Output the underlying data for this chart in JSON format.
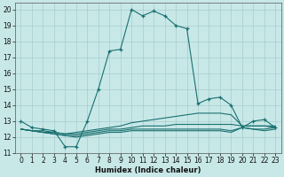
{
  "xlabel": "Humidex (Indice chaleur)",
  "xlim": [
    -0.5,
    23.5
  ],
  "ylim": [
    11,
    20.4
  ],
  "yticks": [
    11,
    12,
    13,
    14,
    15,
    16,
    17,
    18,
    19,
    20
  ],
  "xticks": [
    0,
    1,
    2,
    3,
    4,
    5,
    6,
    7,
    8,
    9,
    10,
    11,
    12,
    13,
    14,
    15,
    16,
    17,
    18,
    19,
    20,
    21,
    22,
    23
  ],
  "bg_color": "#c8e8e8",
  "grid_color": "#a8cccc",
  "line_color": "#1a7070",
  "lines": [
    {
      "x": [
        0,
        1,
        2,
        3,
        4,
        5,
        6,
        7,
        8,
        9,
        10,
        11,
        12,
        13,
        14,
        15,
        16,
        17,
        18,
        19,
        20,
        21,
        22,
        23
      ],
      "y": [
        13.0,
        12.6,
        12.5,
        12.4,
        11.4,
        11.4,
        13.0,
        15.0,
        17.4,
        17.5,
        20.0,
        19.6,
        19.9,
        19.6,
        19.0,
        18.8,
        14.1,
        14.4,
        14.5,
        14.0,
        12.6,
        13.0,
        13.1,
        12.6
      ],
      "marker": true
    },
    {
      "x": [
        0,
        1,
        2,
        3,
        4,
        5,
        6,
        7,
        8,
        9,
        10,
        11,
        12,
        13,
        14,
        15,
        16,
        17,
        18,
        19,
        20,
        21,
        22,
        23
      ],
      "y": [
        12.5,
        12.4,
        12.4,
        12.3,
        12.2,
        12.3,
        12.4,
        12.5,
        12.6,
        12.7,
        12.9,
        13.0,
        13.1,
        13.2,
        13.3,
        13.4,
        13.5,
        13.5,
        13.5,
        13.4,
        12.7,
        12.7,
        12.7,
        12.7
      ],
      "marker": false
    },
    {
      "x": [
        0,
        1,
        2,
        3,
        4,
        5,
        6,
        7,
        8,
        9,
        10,
        11,
        12,
        13,
        14,
        15,
        16,
        17,
        18,
        19,
        20,
        21,
        22,
        23
      ],
      "y": [
        12.5,
        12.4,
        12.3,
        12.3,
        12.2,
        12.2,
        12.3,
        12.4,
        12.5,
        12.5,
        12.6,
        12.7,
        12.7,
        12.7,
        12.8,
        12.8,
        12.8,
        12.8,
        12.8,
        12.8,
        12.7,
        12.7,
        12.7,
        12.6
      ],
      "marker": false
    },
    {
      "x": [
        0,
        1,
        2,
        3,
        4,
        5,
        6,
        7,
        8,
        9,
        10,
        11,
        12,
        13,
        14,
        15,
        16,
        17,
        18,
        19,
        20,
        21,
        22,
        23
      ],
      "y": [
        12.5,
        12.4,
        12.3,
        12.2,
        12.1,
        12.1,
        12.2,
        12.3,
        12.4,
        12.4,
        12.5,
        12.5,
        12.5,
        12.5,
        12.5,
        12.5,
        12.5,
        12.5,
        12.5,
        12.4,
        12.6,
        12.5,
        12.5,
        12.6
      ],
      "marker": false
    },
    {
      "x": [
        0,
        1,
        2,
        3,
        4,
        5,
        6,
        7,
        8,
        9,
        10,
        11,
        12,
        13,
        14,
        15,
        16,
        17,
        18,
        19,
        20,
        21,
        22,
        23
      ],
      "y": [
        12.5,
        12.4,
        12.3,
        12.2,
        12.1,
        12.0,
        12.1,
        12.2,
        12.3,
        12.3,
        12.4,
        12.4,
        12.4,
        12.4,
        12.4,
        12.4,
        12.4,
        12.4,
        12.4,
        12.3,
        12.6,
        12.5,
        12.4,
        12.5
      ],
      "marker": false
    }
  ],
  "tick_fontsize": 5.5,
  "xlabel_fontsize": 6.0
}
